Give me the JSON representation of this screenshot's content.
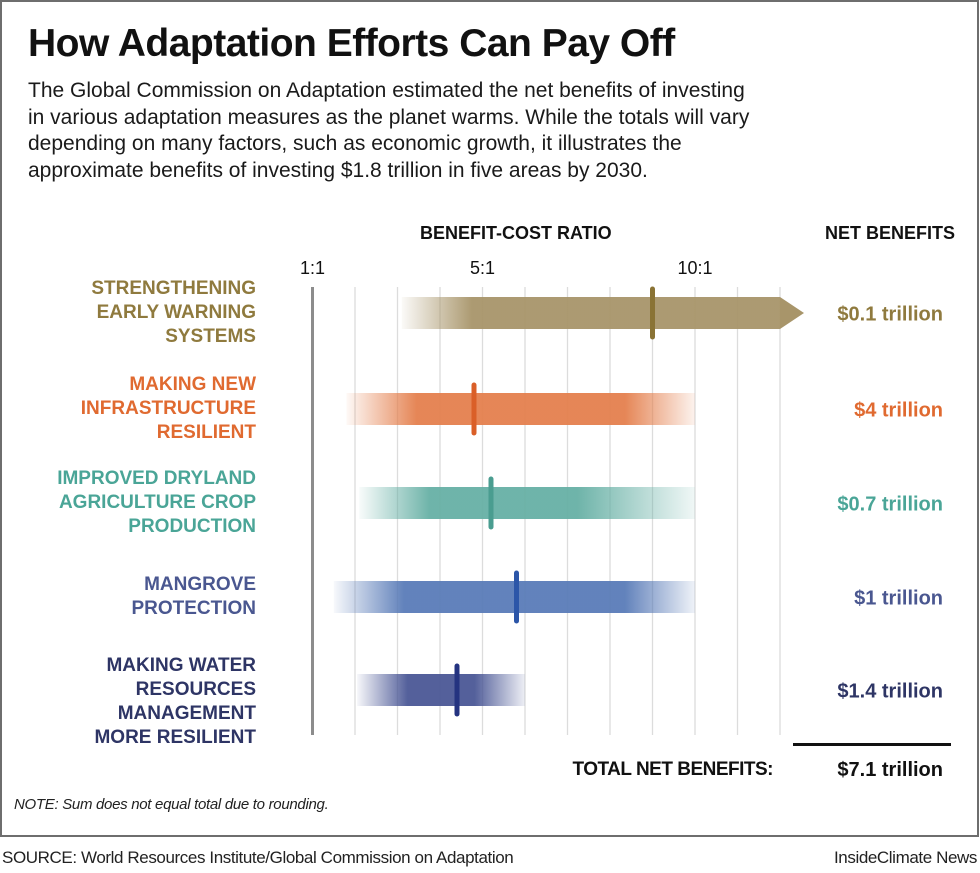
{
  "chart_data": {
    "type": "range-bar",
    "title": "How Adaptation Efforts Can Pay Off",
    "subtitle_lines": [
      "The Global Commission on Adaptation estimated the net benefits of investing",
      "in various adaptation measures as the planet warms. While the totals will vary",
      "depending on many factors, such as economic growth, it illustrates the",
      "approximate benefits of investing $1.8 trillion in five areas by 2030."
    ],
    "xlabel": "BENEFIT-COST RATIO",
    "net_header": "NET BENEFITS",
    "x_range": [
      1,
      12
    ],
    "grid_lines": [
      1,
      2,
      3,
      4,
      5,
      6,
      7,
      8,
      9,
      10,
      11,
      12
    ],
    "ticks": [
      {
        "value": 1,
        "label": "1:1"
      },
      {
        "value": 5,
        "label": "5:1"
      },
      {
        "value": 10,
        "label": "10:1"
      }
    ],
    "grid": true,
    "series": [
      {
        "name": "STRENGTHENING EARLY WARNING SYSTEMS",
        "label_lines": [
          "STRENGTHENING",
          "EARLY WARNING",
          "SYSTEMS"
        ],
        "low": 3.1,
        "high": 12,
        "open_ended": true,
        "point": 9.0,
        "net_benefit": "$0.1 trillion",
        "color": "#a8956a",
        "marker_color": "#8a7335",
        "label_color": "#8f7a3e"
      },
      {
        "name": "MAKING NEW INFRASTRUCTURE RESILIENT",
        "label_lines": [
          "MAKING NEW",
          "INFRASTRUCTURE",
          "RESILIENT"
        ],
        "low": 1.8,
        "high": 10,
        "open_ended": false,
        "point": 4.8,
        "net_benefit": "$4 trillion",
        "color": "#e4804e",
        "marker_color": "#da5f28",
        "label_color": "#e06a30"
      },
      {
        "name": "IMPROVED DRYLAND AGRICULTURE CROP PRODUCTION",
        "label_lines": [
          "IMPROVED DRYLAND",
          "AGRICULTURE CROP",
          "PRODUCTION"
        ],
        "low": 2.1,
        "high": 10,
        "open_ended": false,
        "point": 5.2,
        "net_benefit": "$0.7 trillion",
        "color": "#67b0a5",
        "marker_color": "#4a9d90",
        "label_color": "#4aa597"
      },
      {
        "name": "MANGROVE PROTECTION",
        "label_lines": [
          "MANGROVE",
          "PROTECTION"
        ],
        "low": 1.5,
        "high": 10,
        "open_ended": false,
        "point": 5.8,
        "net_benefit": "$1 trillion",
        "color": "#5a7cb8",
        "marker_color": "#2c56a8",
        "label_color": "#4a5790"
      },
      {
        "name": "MAKING WATER RESOURCES MANAGEMENT MORE RESILIENT",
        "label_lines": [
          "MAKING WATER",
          "RESOURCES",
          "MANAGEMENT",
          "MORE RESILIENT"
        ],
        "low": 2.05,
        "high": 6.0,
        "open_ended": false,
        "point": 4.4,
        "net_benefit": "$1.4 trillion",
        "color": "#4b5896",
        "marker_color": "#243380",
        "label_color": "#2e3565"
      }
    ],
    "total_label": "TOTAL NET BENEFITS:",
    "total_value": "$7.1 trillion",
    "note": "NOTE: Sum does not equal total due to rounding.",
    "source": "SOURCE: World Resources Institute/Global Commission on Adaptation",
    "credit": "InsideClimate News"
  }
}
